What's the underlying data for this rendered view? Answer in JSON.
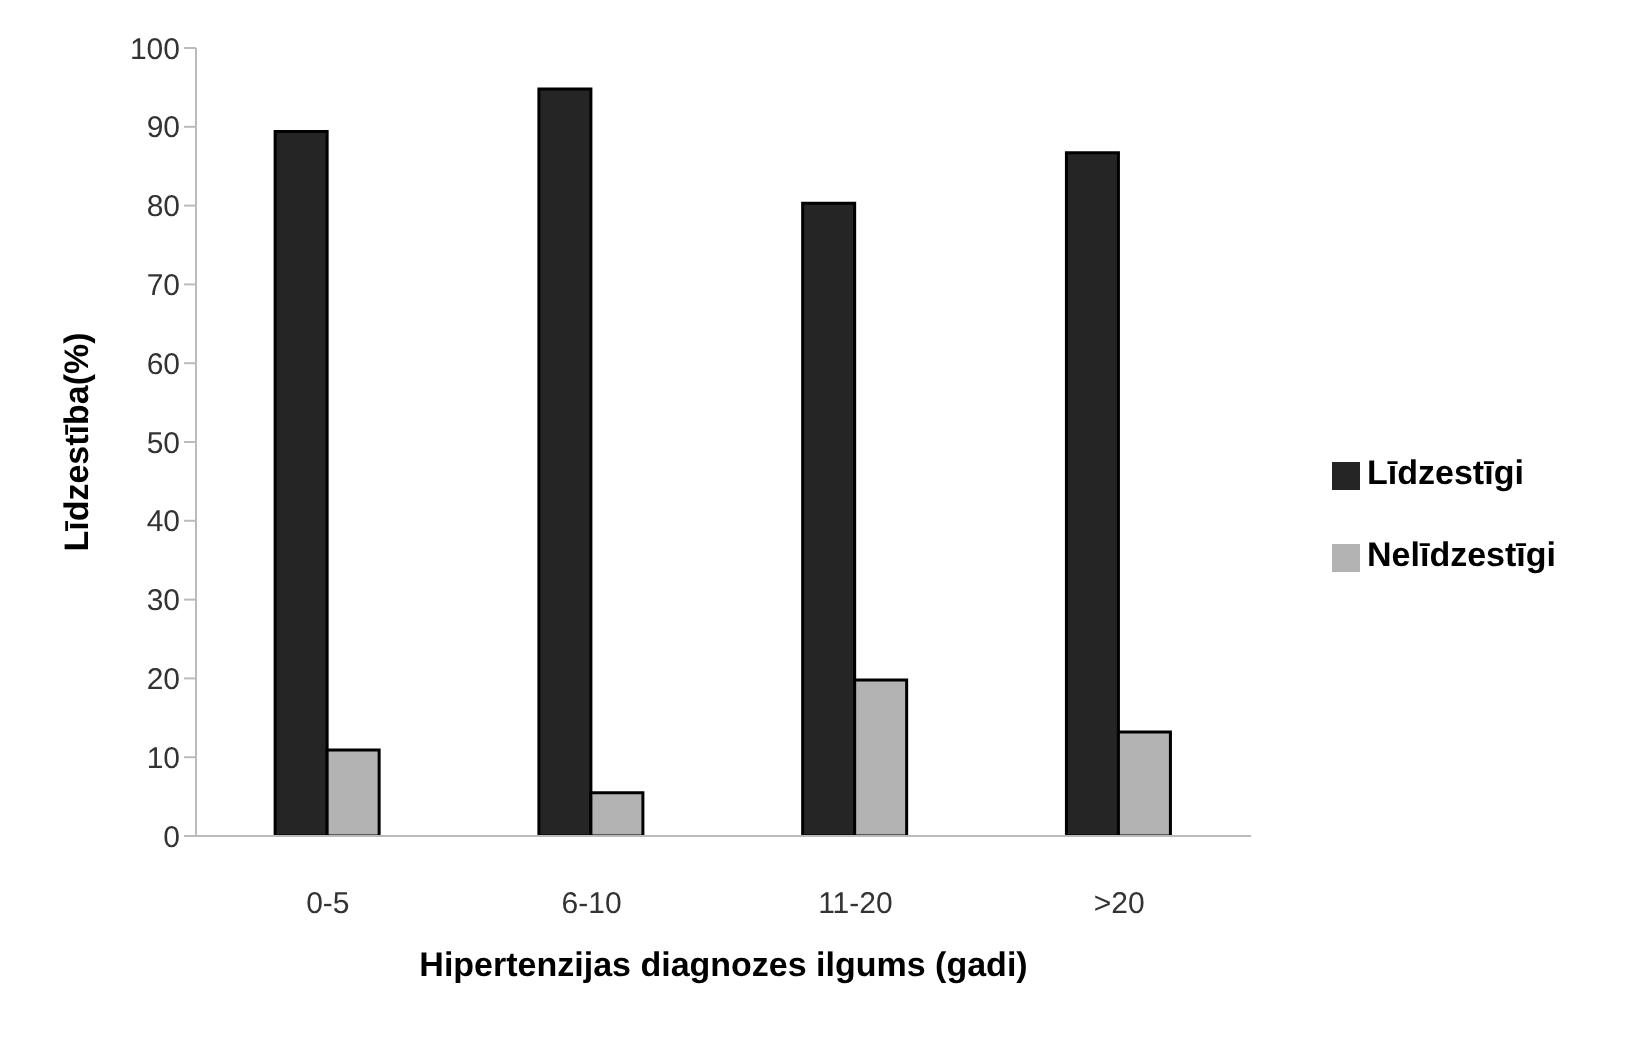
{
  "chart_data": {
    "type": "bar",
    "xlabel": "Hipertenzijas diagnozes ilgums (gadi)",
    "ylabel": "Līdzestība(%)",
    "categories": [
      "0-5",
      "6-10",
      "11-20",
      ">20"
    ],
    "series": [
      {
        "name": "Līdzestīgi",
        "color": "#252525",
        "values": [
          89.4,
          94.8,
          80.3,
          86.7
        ]
      },
      {
        "name": "Nelīdzestīgi",
        "color": "#b3b3b3",
        "values": [
          10.9,
          5.5,
          19.8,
          13.2
        ]
      }
    ],
    "ylim": [
      0,
      100
    ],
    "yticks": [
      0,
      10,
      20,
      30,
      40,
      50,
      60,
      70,
      80,
      90,
      100
    ],
    "grid": false,
    "legend": "right"
  }
}
